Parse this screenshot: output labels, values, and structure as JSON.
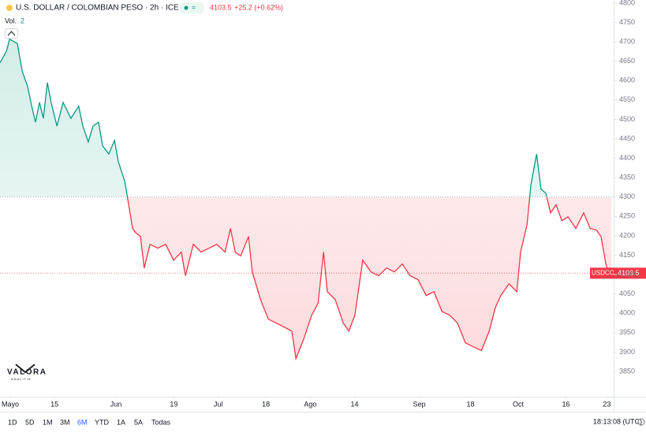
{
  "header": {
    "symbol": "U.S. DOLLAR / COLOMBIAN PESO · 2h · ICE",
    "last_price": 4103.5,
    "change": "+25.2 (+0.62%)",
    "volume_label": "Vol.",
    "volume_value": "2"
  },
  "logo": {
    "name": "VALORA",
    "sub": "ANALITIK"
  },
  "toolbar": {
    "ranges": [
      "1D",
      "5D",
      "1M",
      "3M",
      "6M",
      "YTD",
      "1A",
      "5A",
      "Todas"
    ],
    "active": "6M",
    "clock": "18:13:08 (UTC)"
  },
  "chart_data": {
    "type": "baseline",
    "baseline": 4300,
    "x": [
      0,
      1.9,
      2.8,
      5.1,
      6.5,
      8.1,
      9.3,
      10.4,
      11.6,
      12.7,
      13.9,
      15,
      16.7,
      18.5,
      20.8,
      23.1,
      24.3,
      25.9,
      27.3,
      28.9,
      30.1,
      31.9,
      33.6,
      34.7,
      36.6,
      37.7,
      38.9,
      39.8,
      41.2,
      42.3,
      44,
      46.3,
      48.6,
      50.9,
      53.2,
      54.4,
      56.7,
      59,
      61.3,
      63.6,
      66,
      67.6,
      69,
      70.6,
      72.9,
      74,
      76.4,
      78.7,
      81,
      83.3,
      85.6,
      86.8,
      89.1,
      91.4,
      93.3,
      94.9,
      96,
      98.3,
      100.7,
      102.3,
      104.1,
      106.4,
      108.8,
      111.1,
      113.4,
      115.7,
      118,
      120.3,
      122.6,
      125,
      127.3,
      129.6,
      131.9,
      134.2,
      136.5,
      138.8,
      141.2,
      143.5,
      145.3,
      146.9,
      149.3,
      151.6,
      152.7,
      154.6,
      155.7,
      157.4,
      158.7,
      160.1,
      161.5,
      163.1,
      164.8,
      166.6,
      168.9,
      171.2,
      173.1,
      174.9,
      176.3,
      177.7,
      178.9,
      179.3
    ],
    "series": [
      {
        "name": "USDCOP",
        "up_color": "#089981",
        "down_color": "#f23645",
        "values": [
          4646,
          4676,
          4707,
          4696,
          4625,
          4585,
          4534,
          4493,
          4544,
          4503,
          4595,
          4544,
          4483,
          4544,
          4503,
          4534,
          4483,
          4442,
          4483,
          4493,
          4432,
          4411,
          4446,
          4391,
          4340,
          4283,
          4219,
          4208,
          4198,
          4117,
          4178,
          4168,
          4178,
          4137,
          4158,
          4097,
          4178,
          4158,
          4168,
          4178,
          4158,
          4219,
          4158,
          4148,
          4198,
          4107,
          4036,
          3985,
          3975,
          3965,
          3954,
          3883,
          3934,
          3995,
          4026,
          4158,
          4056,
          4036,
          3975,
          3954,
          3995,
          4137,
          4107,
          4097,
          4117,
          4107,
          4127,
          4097,
          4087,
          4046,
          4056,
          4005,
          3995,
          3975,
          3924,
          3914,
          3904,
          3954,
          4015,
          4046,
          4076,
          4056,
          4158,
          4229,
          4330,
          4411,
          4320,
          4310,
          4259,
          4280,
          4239,
          4249,
          4219,
          4259,
          4219,
          4215,
          4198,
          4127,
          4097,
          4103.5
        ]
      }
    ],
    "xlim": [
      0,
      180
    ],
    "xticks": [
      {
        "value": 3,
        "label": "Mayo"
      },
      {
        "value": 16,
        "label": "15"
      },
      {
        "value": 34,
        "label": "Jun"
      },
      {
        "value": 51,
        "label": "19"
      },
      {
        "value": 64,
        "label": "Jul"
      },
      {
        "value": 78,
        "label": "18"
      },
      {
        "value": 91,
        "label": "Ago"
      },
      {
        "value": 104,
        "label": "14"
      },
      {
        "value": 123,
        "label": "Sep"
      },
      {
        "value": 138,
        "label": "18"
      },
      {
        "value": 152,
        "label": "Oct"
      },
      {
        "value": 166,
        "label": "16"
      },
      {
        "value": 178,
        "label": "23"
      }
    ],
    "ylim": [
      3785,
      4808
    ],
    "yticks": [
      3850,
      3900,
      3950,
      4000,
      4050,
      4100,
      4150,
      4200,
      4250,
      4300,
      4350,
      4400,
      4450,
      4500,
      4550,
      4600,
      4650,
      4700,
      4750,
      4800
    ]
  }
}
